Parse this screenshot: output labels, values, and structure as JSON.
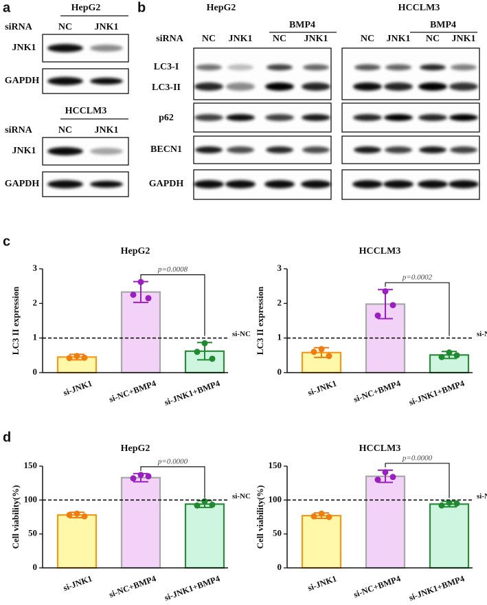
{
  "panel_labels": [
    "a",
    "b",
    "c",
    "d"
  ],
  "blot_a": [
    {
      "cell_line": "HepG2",
      "siRNA_label": "siRNA",
      "lanes": [
        "NC",
        "JNK1"
      ],
      "rows": [
        "JNK1",
        "GAPDH"
      ]
    },
    {
      "cell_line": "HCCLM3",
      "siRNA_label": "siRNA",
      "lanes": [
        "NC",
        "JNK1"
      ],
      "rows": [
        "JNK1",
        "GAPDH"
      ]
    }
  ],
  "blot_b": {
    "siRNA_label": "siRNA",
    "groups": [
      {
        "cell_line": "HepG2",
        "treatment": "BMP4",
        "lanes": [
          "NC",
          "JNK1",
          "NC",
          "JNK1"
        ]
      },
      {
        "cell_line": "HCCLM3",
        "treatment": "BMP4",
        "lanes": [
          "NC",
          "JNK1",
          "NC",
          "JNK1"
        ]
      }
    ],
    "rows": [
      "LC3-I",
      "LC3-II",
      "p62",
      "BECN1",
      "GAPDH"
    ]
  },
  "chart_data": [
    {
      "type": "bar",
      "title": "HepG2",
      "y_label": "LC3 II expression",
      "categories": [
        "si-JNK1",
        "si-NC+BMP4",
        "si-JNK1+BMP4"
      ],
      "values": [
        0.45,
        2.33,
        0.62
      ],
      "errors": [
        0.08,
        0.3,
        0.25
      ],
      "points": [
        [
          0.42,
          0.48,
          0.43
        ],
        [
          2.25,
          2.62,
          2.15
        ],
        [
          0.6,
          0.85,
          0.4
        ]
      ],
      "colors": [
        "#fff8a8",
        "#f2d2f7",
        "#cdf5df"
      ],
      "edge_colors": [
        "#f39a1e",
        "#a8a8a8",
        "#2e8b3a"
      ],
      "point_colors": [
        "#f07d10",
        "#9b1fc0",
        "#1f8a30"
      ],
      "ylim": [
        0,
        3
      ],
      "yticks": [
        0,
        1,
        2,
        3
      ],
      "reference_line": {
        "value": 1,
        "label": "si-NC"
      },
      "annotation": "p=0.0008"
    },
    {
      "type": "bar",
      "title": "HCCLM3",
      "y_label": "LC3 II expression",
      "categories": [
        "si-JNK1",
        "si-NC+BMP4",
        "si-JNK1+BMP4"
      ],
      "values": [
        0.58,
        1.98,
        0.51
      ],
      "errors": [
        0.14,
        0.42,
        0.1
      ],
      "points": [
        [
          0.6,
          0.68,
          0.48
        ],
        [
          1.65,
          2.35,
          1.95
        ],
        [
          0.45,
          0.58,
          0.5
        ]
      ],
      "colors": [
        "#fff8a8",
        "#f2d2f7",
        "#cdf5df"
      ],
      "edge_colors": [
        "#f39a1e",
        "#a8a8a8",
        "#2e8b3a"
      ],
      "point_colors": [
        "#f07d10",
        "#9b1fc0",
        "#1f8a30"
      ],
      "ylim": [
        0,
        3
      ],
      "yticks": [
        0,
        1,
        2,
        3
      ],
      "reference_line": {
        "value": 1,
        "label": "si-NC"
      },
      "annotation": "p=0.0002"
    },
    {
      "type": "bar",
      "title": "HepG2",
      "y_label": "Cell viability(%)",
      "categories": [
        "si-JNK1",
        "si-NC+BMP4",
        "si-JNK1+BMP4"
      ],
      "values": [
        78,
        133,
        94
      ],
      "errors": [
        4,
        6,
        5
      ],
      "points": [
        [
          78,
          80,
          76
        ],
        [
          132,
          137,
          135
        ],
        [
          92,
          98,
          93
        ]
      ],
      "colors": [
        "#fff8a8",
        "#f2d2f7",
        "#cdf5df"
      ],
      "edge_colors": [
        "#f39a1e",
        "#a8a8a8",
        "#2e8b3a"
      ],
      "point_colors": [
        "#f07d10",
        "#9b1fc0",
        "#1f8a30"
      ],
      "ylim": [
        0,
        150
      ],
      "yticks": [
        0,
        50,
        100,
        150
      ],
      "reference_line": {
        "value": 100,
        "label": "si-NC"
      },
      "annotation": "p=0.0000"
    },
    {
      "type": "bar",
      "title": "HCCLM3",
      "y_label": "Cell viability(%)",
      "categories": [
        "si-JNK1",
        "si-NC+BMP4",
        "si-JNK1+BMP4"
      ],
      "values": [
        77,
        135,
        94
      ],
      "errors": [
        4,
        9,
        4
      ],
      "points": [
        [
          76,
          80,
          75
        ],
        [
          130,
          141,
          134
        ],
        [
          92,
          96,
          95
        ]
      ],
      "colors": [
        "#fff8a8",
        "#f2d2f7",
        "#cdf5df"
      ],
      "edge_colors": [
        "#f39a1e",
        "#a8a8a8",
        "#2e8b3a"
      ],
      "point_colors": [
        "#f07d10",
        "#9b1fc0",
        "#1f8a30"
      ],
      "ylim": [
        0,
        150
      ],
      "yticks": [
        0,
        50,
        100,
        150
      ],
      "reference_line": {
        "value": 100,
        "label": "si-NC"
      },
      "annotation": "p=0.0000"
    }
  ]
}
